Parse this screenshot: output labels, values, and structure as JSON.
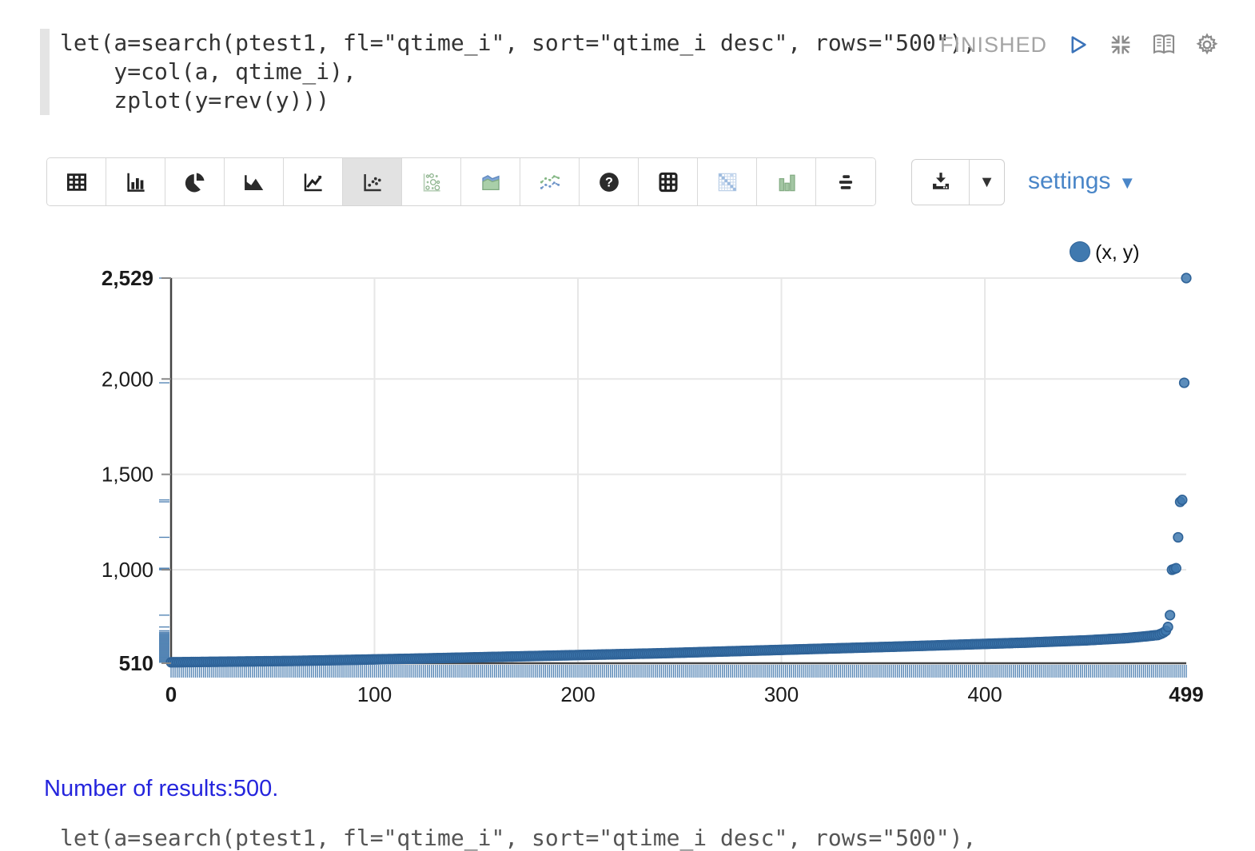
{
  "paragraph": {
    "code": "let(a=search(ptest1, fl=\"qtime_i\", sort=\"qtime_i desc\", rows=\"500\"),\n    y=col(a, qtime_i),\n    zplot(y=rev(y)))",
    "status": "FINISHED",
    "controls": [
      "run",
      "collapse",
      "show-editor",
      "settings-gear"
    ]
  },
  "toolbar": {
    "chart_type_icons": [
      "table",
      "bar-chart",
      "pie-chart",
      "area-chart",
      "line-chart",
      "scatter-plot",
      "bubble-chart",
      "stream-area-chart",
      "multi-line-chart",
      "help",
      "pivot-grid",
      "heatmap",
      "column-chart",
      "horizontal-bars"
    ],
    "selected_icon": "scatter-plot",
    "settings_label": "settings"
  },
  "chart_data": {
    "type": "scatter",
    "legend": "(x, y)",
    "n_points": 500,
    "x_range": [
      0,
      499
    ],
    "y_range": [
      510,
      2529
    ],
    "x_ticks": [
      {
        "v": 0,
        "label": "0",
        "bold": true
      },
      {
        "v": 100,
        "label": "100",
        "bold": false
      },
      {
        "v": 200,
        "label": "200",
        "bold": false
      },
      {
        "v": 300,
        "label": "300",
        "bold": false
      },
      {
        "v": 400,
        "label": "400",
        "bold": false
      },
      {
        "v": 499,
        "label": "499",
        "bold": true
      }
    ],
    "y_ticks": [
      {
        "v": 2529,
        "label": "2,529",
        "bold": true
      },
      {
        "v": 2000,
        "label": "2,000",
        "bold": false
      },
      {
        "v": 1500,
        "label": "1,500",
        "bold": false
      },
      {
        "v": 1000,
        "label": "1,000",
        "bold": false
      },
      {
        "v": 510,
        "label": "510",
        "bold": true
      }
    ],
    "grid_x": [
      100,
      200,
      300,
      400
    ],
    "grid_y": [
      2529,
      2000,
      1500,
      1000
    ],
    "profile": [
      [
        0,
        515
      ],
      [
        60,
        522
      ],
      [
        120,
        534
      ],
      [
        180,
        548
      ],
      [
        240,
        562
      ],
      [
        300,
        580
      ],
      [
        360,
        598
      ],
      [
        420,
        618
      ],
      [
        450,
        630
      ],
      [
        470,
        642
      ],
      [
        480,
        652
      ],
      [
        485,
        658
      ]
    ],
    "tail": [
      662,
      666,
      672,
      680,
      700,
      762,
      1000,
      1004,
      1008,
      1170,
      1356,
      1366,
      1980,
      2529
    ],
    "point_fill": "#407ab0",
    "colors": {
      "point_fill": "#4079af",
      "point_stroke": "#2f6398",
      "rug": "#4479ad",
      "grid": "#e7e7e7",
      "axis": "#444444",
      "tick_label": "#1a1a1a"
    }
  },
  "footer": {
    "results_text": "Number of results:500.",
    "next_paragraph_preview": "let(a=search(ptest1, fl=\"qtime_i\", sort=\"qtime_i desc\", rows=\"500\"),"
  }
}
